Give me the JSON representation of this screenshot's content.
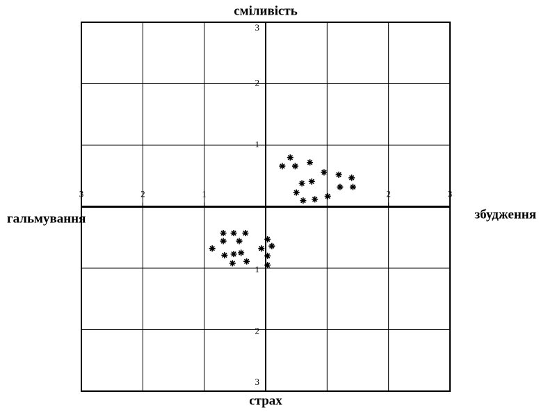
{
  "chart_data": {
    "type": "scatter",
    "title": "сміливість",
    "bottom_label": "страх",
    "left_label": "гальмування",
    "right_label": "збудження",
    "xlim": [
      -3,
      3
    ],
    "ylim": [
      -3,
      3
    ],
    "xticks": [
      {
        "value": -3,
        "label": "3"
      },
      {
        "value": -2,
        "label": "2"
      },
      {
        "value": -1,
        "label": "1"
      },
      2,
      3
    ],
    "yticks": [
      3,
      2,
      1,
      {
        "value": -1,
        "label": "1"
      },
      {
        "value": -2,
        "label": "2"
      },
      {
        "value": -3,
        "label": "3"
      }
    ],
    "grid": true,
    "color": "#000000",
    "x": [
      0.27,
      0.4,
      0.48,
      0.72,
      0.95,
      1.19,
      1.4,
      0.59,
      0.75,
      0.5,
      0.61,
      0.8,
      1.01,
      1.21,
      1.42,
      -0.69,
      -0.52,
      -0.33,
      -0.69,
      -0.43,
      -0.87,
      -0.67,
      -0.52,
      -0.4,
      -0.54,
      -0.31,
      -0.07,
      0.03,
      0.1,
      0.03,
      0.03
    ],
    "y": [
      0.66,
      0.8,
      0.66,
      0.72,
      0.56,
      0.52,
      0.47,
      0.38,
      0.41,
      0.23,
      0.1,
      0.12,
      0.17,
      0.32,
      0.32,
      -0.43,
      -0.43,
      -0.43,
      -0.56,
      -0.56,
      -0.68,
      -0.79,
      -0.77,
      -0.75,
      -0.92,
      -0.89,
      -0.68,
      -0.53,
      -0.64,
      -0.8,
      -0.95
    ]
  }
}
